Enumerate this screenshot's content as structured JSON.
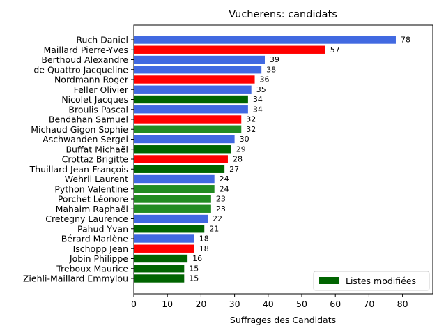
{
  "chart_data": {
    "type": "bar",
    "orientation": "horizontal",
    "title": "Vucherens: candidats",
    "xlabel": "Suffrages des Candidats",
    "ylabel": "",
    "xlim": [
      0,
      89
    ],
    "xticks": [
      0,
      10,
      20,
      30,
      40,
      50,
      60,
      70,
      80
    ],
    "grid": false,
    "colors": {
      "blue": "#4169e1",
      "red": "#ff0000",
      "darkgreen": "#006400",
      "green": "#228b22"
    },
    "bars": [
      {
        "name": "Ruch Daniel",
        "value": 78,
        "color": "#4169e1"
      },
      {
        "name": "Maillard Pierre-Yves",
        "value": 57,
        "color": "#ff0000"
      },
      {
        "name": "Berthoud Alexandre",
        "value": 39,
        "color": "#4169e1"
      },
      {
        "name": "de Quattro Jacqueline",
        "value": 38,
        "color": "#4169e1"
      },
      {
        "name": "Nordmann Roger",
        "value": 36,
        "color": "#ff0000"
      },
      {
        "name": "Feller Olivier",
        "value": 35,
        "color": "#4169e1"
      },
      {
        "name": "Nicolet Jacques",
        "value": 34,
        "color": "#006400"
      },
      {
        "name": "Broulis Pascal",
        "value": 34,
        "color": "#4169e1"
      },
      {
        "name": "Bendahan Samuel",
        "value": 32,
        "color": "#ff0000"
      },
      {
        "name": "Michaud Gigon Sophie",
        "value": 32,
        "color": "#228b22"
      },
      {
        "name": "Aschwanden Sergei",
        "value": 30,
        "color": "#4169e1"
      },
      {
        "name": "Buffat Michaël",
        "value": 29,
        "color": "#006400"
      },
      {
        "name": "Crottaz Brigitte",
        "value": 28,
        "color": "#ff0000"
      },
      {
        "name": "Thuillard Jean-François",
        "value": 27,
        "color": "#006400"
      },
      {
        "name": "Wehrli Laurent",
        "value": 24,
        "color": "#4169e1"
      },
      {
        "name": "Python Valentine",
        "value": 24,
        "color": "#228b22"
      },
      {
        "name": "Porchet Léonore",
        "value": 23,
        "color": "#228b22"
      },
      {
        "name": "Mahaim Raphaël",
        "value": 23,
        "color": "#228b22"
      },
      {
        "name": "Cretegny Laurence",
        "value": 22,
        "color": "#4169e1"
      },
      {
        "name": "Pahud Yvan",
        "value": 21,
        "color": "#006400"
      },
      {
        "name": "Bérard Marlène",
        "value": 18,
        "color": "#4169e1"
      },
      {
        "name": "Tschopp Jean",
        "value": 18,
        "color": "#ff0000"
      },
      {
        "name": "Jobin Philippe",
        "value": 16,
        "color": "#006400"
      },
      {
        "name": "Treboux Maurice",
        "value": 15,
        "color": "#006400"
      },
      {
        "name": "Ziehli-Maillard Emmylou",
        "value": 15,
        "color": "#006400"
      }
    ],
    "legend": {
      "placement": "lower-right",
      "entries": [
        {
          "label": "Listes modifiées",
          "color": "#006400"
        }
      ]
    }
  }
}
